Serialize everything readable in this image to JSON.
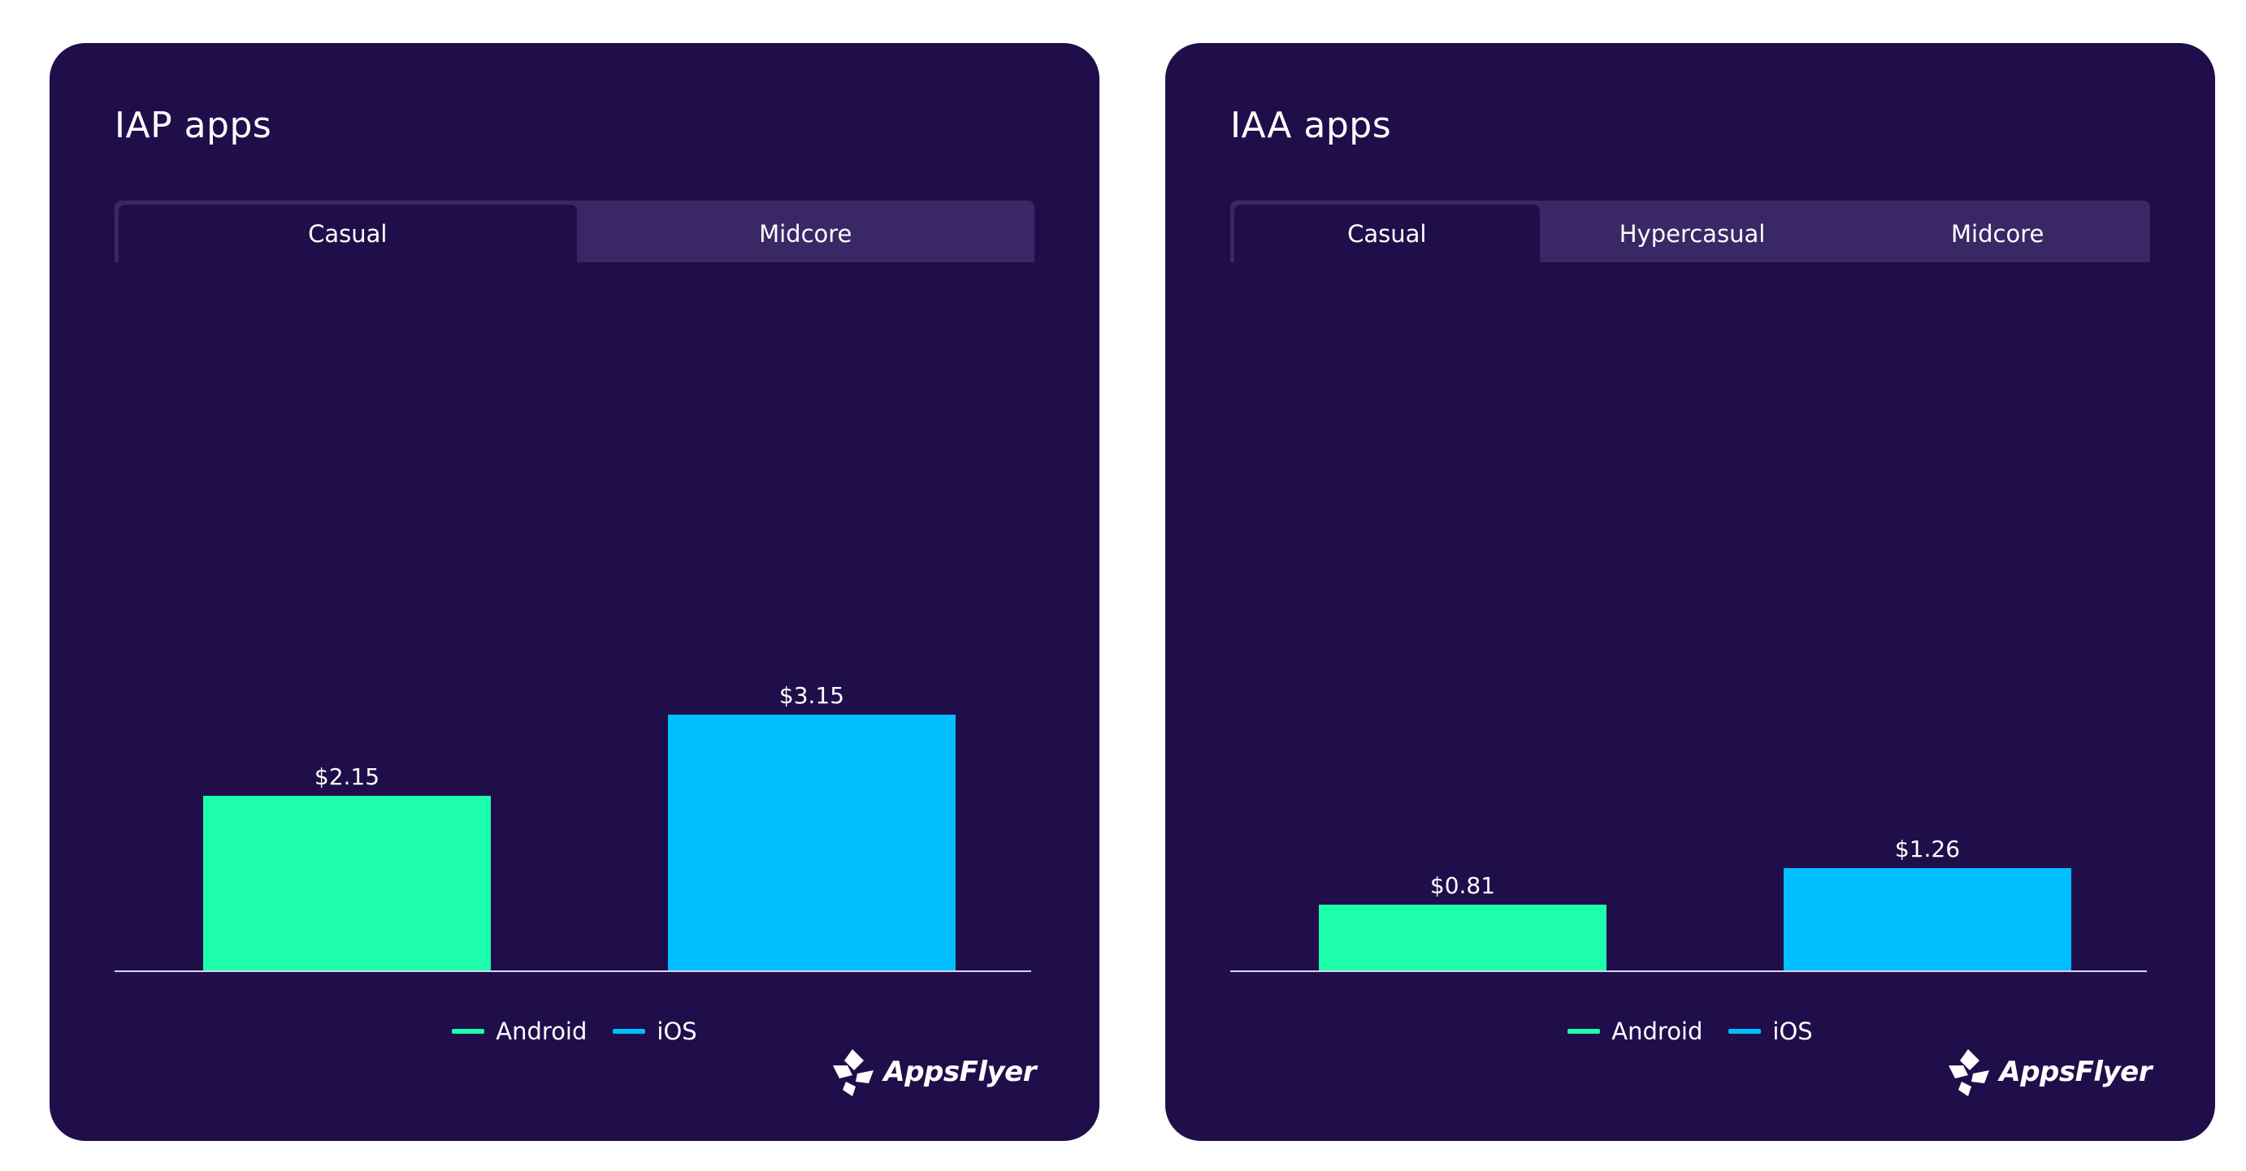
{
  "colors": {
    "background": "#ffffff",
    "card": "#200e4b",
    "tab_strip": "#3a2866",
    "android": "#1effad",
    "ios": "#00bfff",
    "text": "#ffffff"
  },
  "brand": {
    "logo_text": "AppsFlyer",
    "icon": "appsflyer-logo-icon"
  },
  "charts": [
    {
      "title": "IAP apps",
      "tabs": [
        {
          "label": "Casual",
          "active": true
        },
        {
          "label": "Midcore",
          "active": false
        }
      ],
      "legend": [
        {
          "label": "Android",
          "color": "#1effad"
        },
        {
          "label": "iOS",
          "color": "#00bfff"
        }
      ]
    },
    {
      "title": "IAA apps",
      "tabs": [
        {
          "label": "Casual",
          "active": true
        },
        {
          "label": "Hypercasual",
          "active": false
        },
        {
          "label": "Midcore",
          "active": false
        }
      ],
      "legend": [
        {
          "label": "Android",
          "color": "#1effad"
        },
        {
          "label": "iOS",
          "color": "#00bfff"
        }
      ]
    }
  ],
  "chart_data": [
    {
      "type": "bar",
      "title": "IAP apps",
      "categories": [
        "Android",
        "iOS"
      ],
      "values": [
        2.15,
        3.15
      ],
      "value_labels": [
        "$2.15",
        "$3.15"
      ],
      "colors": [
        "#1effad",
        "#00bfff"
      ],
      "xlabel": "",
      "ylabel": "",
      "ylim": [
        0,
        8.4
      ],
      "grid": false,
      "legend": "bottom-center"
    },
    {
      "type": "bar",
      "title": "IAA apps",
      "categories": [
        "Android",
        "iOS"
      ],
      "values": [
        0.81,
        1.26
      ],
      "value_labels": [
        "$0.81",
        "$1.26"
      ],
      "colors": [
        "#1effad",
        "#00bfff"
      ],
      "xlabel": "",
      "ylabel": "",
      "ylim": [
        0,
        8.4
      ],
      "grid": false,
      "legend": "bottom-center"
    }
  ]
}
